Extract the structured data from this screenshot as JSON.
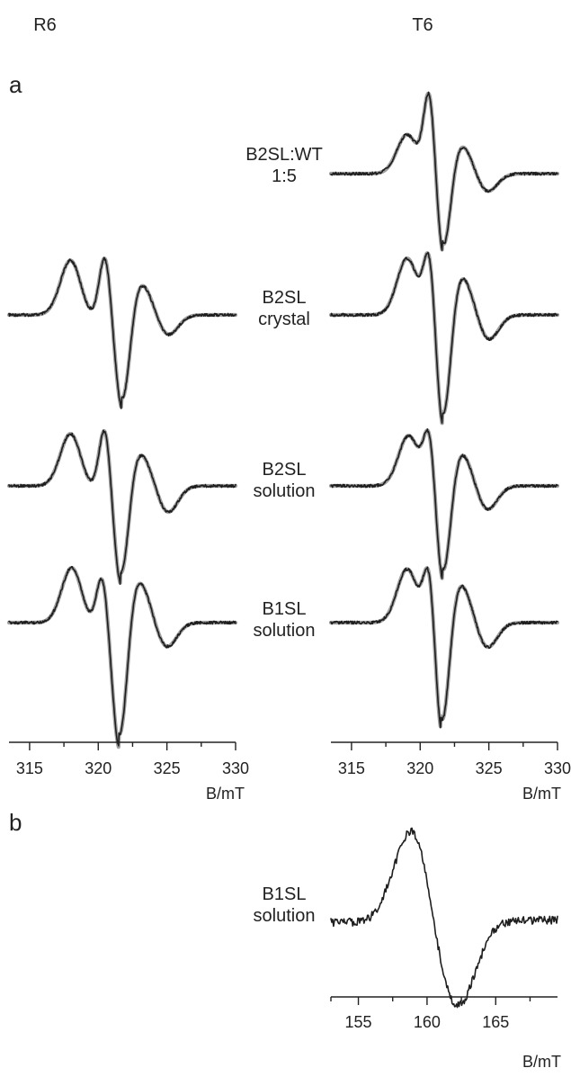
{
  "figure": {
    "column_titles": [
      "R6",
      "T6"
    ],
    "panel_letters": [
      "a",
      "b"
    ]
  },
  "chart_data": [
    {
      "panel": "a",
      "column": "R6",
      "type": "line",
      "xlabel": "B/mT",
      "xlim": [
        313.5,
        330
      ],
      "xticks": [
        315,
        320,
        325,
        330
      ],
      "grid": false,
      "series": [
        {
          "label_lines": [
            "B2SL",
            "crystal"
          ],
          "style": "experiment-and-simulation",
          "features": {
            "baseline": 0,
            "peaks": [
              {
                "B": 318.0,
                "amp": 0.55
              },
              {
                "B": 320.5,
                "amp": 0.62
              }
            ],
            "trough": {
              "B": 321.7,
              "amp": -1.0
            },
            "high_field_dip": {
              "B": 325.0,
              "amp": -0.22
            }
          }
        },
        {
          "label_lines": [
            "B2SL",
            "solution"
          ],
          "style": "experiment-and-simulation",
          "features": {
            "baseline": 0,
            "peaks": [
              {
                "B": 318.0,
                "amp": 0.5
              },
              {
                "B": 320.5,
                "amp": 0.6
              }
            ],
            "trough": {
              "B": 321.6,
              "amp": -1.0
            },
            "high_field_dip": {
              "B": 325.0,
              "amp": -0.27
            }
          }
        },
        {
          "label_lines": [
            "B1SL",
            "solution"
          ],
          "style": "experiment-and-simulation",
          "features": {
            "baseline": 0,
            "peaks": [
              {
                "B": 318.1,
                "amp": 0.42
              },
              {
                "B": 320.3,
                "amp": 0.38
              }
            ],
            "trough": {
              "B": 321.5,
              "amp": -1.0
            },
            "high_field_dip": {
              "B": 324.9,
              "amp": -0.2
            }
          }
        }
      ]
    },
    {
      "panel": "a",
      "column": "T6",
      "type": "line",
      "xlabel": "B/mT",
      "xlim": [
        313.5,
        330
      ],
      "xticks": [
        315,
        320,
        325,
        330
      ],
      "grid": false,
      "series": [
        {
          "label_lines": [
            "B2SL:WT",
            "1:5"
          ],
          "style": "experiment-and-simulation",
          "features": {
            "baseline": 0,
            "peaks": [
              {
                "B": 319.1,
                "amp": 0.45
              },
              {
                "B": 320.7,
                "amp": 1.0
              }
            ],
            "trough": {
              "B": 321.6,
              "amp": -1.0
            },
            "high_field_dip": {
              "B": 324.8,
              "amp": -0.22
            }
          }
        },
        {
          "label_lines": [
            "B2SL",
            "crystal"
          ],
          "style": "experiment-and-simulation",
          "features": {
            "baseline": 0,
            "peaks": [
              {
                "B": 319.1,
                "amp": 0.48
              },
              {
                "B": 320.7,
                "amp": 0.6
              }
            ],
            "trough": {
              "B": 321.6,
              "amp": -1.0
            },
            "high_field_dip": {
              "B": 324.9,
              "amp": -0.22
            }
          }
        },
        {
          "label_lines": [
            "B2SL",
            "solution"
          ],
          "style": "experiment-and-simulation",
          "features": {
            "baseline": 0,
            "peaks": [
              {
                "B": 319.2,
                "amp": 0.5
              },
              {
                "B": 320.7,
                "amp": 0.6
              }
            ],
            "trough": {
              "B": 321.6,
              "amp": -1.0
            },
            "high_field_dip": {
              "B": 324.8,
              "amp": -0.25
            }
          }
        },
        {
          "label_lines": [
            "B1SL",
            "solution"
          ],
          "style": "experiment-and-simulation",
          "features": {
            "baseline": 0,
            "peaks": [
              {
                "B": 319.1,
                "amp": 0.45
              },
              {
                "B": 320.7,
                "amp": 0.58
              }
            ],
            "trough": {
              "B": 321.5,
              "amp": -1.0
            },
            "high_field_dip": {
              "B": 324.8,
              "amp": -0.22
            }
          }
        }
      ]
    },
    {
      "panel": "b",
      "column": "T6",
      "type": "line",
      "xlabel": "B/mT",
      "xlim": [
        153,
        169.5
      ],
      "xticks": [
        155,
        160,
        165
      ],
      "grid": false,
      "series": [
        {
          "label_lines": [
            "B1SL",
            "solution"
          ],
          "style": "experiment-only",
          "features": {
            "baseline": 0,
            "max": {
              "B": 159.0,
              "amp": 1.0
            },
            "min": {
              "B": 162.2,
              "amp": -1.0
            },
            "left_level": 0.05,
            "right_level": 0.08
          }
        }
      ]
    }
  ]
}
